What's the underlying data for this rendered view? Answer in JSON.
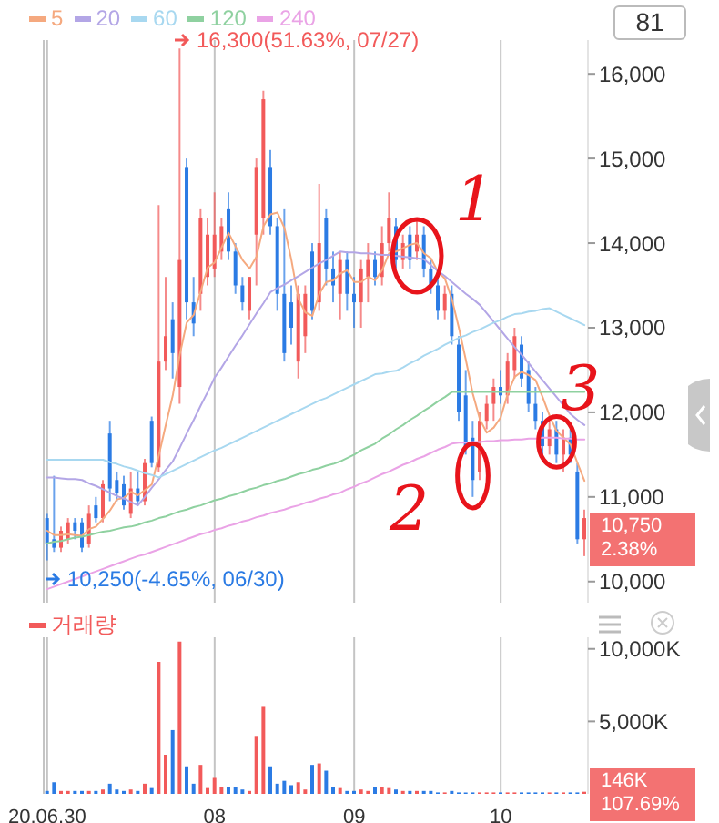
{
  "chart_data": [
    {
      "type": "candlestick",
      "categories": [
        "20.06.30",
        null,
        null,
        null,
        null,
        null,
        null,
        null,
        null,
        null,
        null,
        null,
        null,
        null,
        null,
        null,
        null,
        null,
        null,
        null,
        null,
        null,
        null,
        null,
        "08",
        null,
        null,
        null,
        null,
        null,
        null,
        null,
        null,
        null,
        null,
        null,
        null,
        null,
        null,
        null,
        null,
        null,
        null,
        null,
        "09",
        null,
        null,
        null,
        null,
        null,
        null,
        null,
        null,
        null,
        null,
        null,
        null,
        null,
        null,
        null,
        null,
        null,
        null,
        null,
        null,
        "10",
        null,
        null,
        null,
        null,
        null,
        null,
        null,
        null,
        null,
        null,
        null,
        null
      ],
      "ohlc": [
        [
          10750,
          10800,
          10250,
          10450
        ],
        [
          10500,
          11250,
          10350,
          10400
        ],
        [
          10400,
          10650,
          10350,
          10600
        ],
        [
          10500,
          10750,
          10450,
          10700
        ],
        [
          10700,
          10750,
          10500,
          10600
        ],
        [
          10700,
          10750,
          10350,
          10400
        ],
        [
          10450,
          10900,
          10400,
          10800
        ],
        [
          10900,
          11000,
          10700,
          10750
        ],
        [
          10750,
          11200,
          10700,
          11150
        ],
        [
          11750,
          11900,
          10950,
          11100
        ],
        [
          11200,
          11300,
          10950,
          11050
        ],
        [
          11150,
          11250,
          10850,
          10900
        ],
        [
          10800,
          11300,
          10750,
          11100
        ],
        [
          11100,
          11300,
          10900,
          10950
        ],
        [
          10950,
          11450,
          10900,
          11400
        ],
        [
          11900,
          11950,
          11350,
          11400
        ],
        [
          11350,
          14450,
          11300,
          12600
        ],
        [
          12600,
          13600,
          12500,
          12900
        ],
        [
          13100,
          13300,
          12400,
          12700
        ],
        [
          12300,
          16300,
          12100,
          13800
        ],
        [
          14900,
          15000,
          13100,
          13300
        ],
        [
          13300,
          13600,
          12900,
          13050
        ],
        [
          13400,
          14400,
          13200,
          14300
        ],
        [
          13600,
          14300,
          13500,
          14100
        ],
        [
          13700,
          14600,
          13600,
          14100
        ],
        [
          13900,
          14300,
          13800,
          14200
        ],
        [
          14400,
          14600,
          13800,
          13900
        ],
        [
          13900,
          14000,
          13400,
          13500
        ],
        [
          13500,
          13600,
          13200,
          13300
        ],
        [
          13200,
          13600,
          13100,
          13600
        ],
        [
          14100,
          15000,
          13500,
          14900
        ],
        [
          14300,
          15800,
          14100,
          15700
        ],
        [
          14900,
          15100,
          14100,
          14200
        ],
        [
          14200,
          14300,
          13200,
          13400
        ],
        [
          13400,
          14400,
          12600,
          12700
        ],
        [
          13300,
          13500,
          12800,
          13000
        ],
        [
          12600,
          13500,
          12400,
          13400
        ],
        [
          12900,
          13500,
          12700,
          13400
        ],
        [
          13900,
          14000,
          13100,
          13200
        ],
        [
          13300,
          14700,
          13200,
          14000
        ],
        [
          14300,
          14400,
          13500,
          13700
        ],
        [
          13700,
          13900,
          13300,
          13500
        ],
        [
          13400,
          13900,
          13100,
          13800
        ],
        [
          13800,
          13900,
          13200,
          13400
        ],
        [
          13400,
          13600,
          13000,
          13300
        ],
        [
          13300,
          13800,
          13000,
          13700
        ],
        [
          13600,
          14000,
          13300,
          13800
        ],
        [
          13800,
          13900,
          13500,
          13600
        ],
        [
          13600,
          14200,
          13500,
          14000
        ],
        [
          14000,
          14600,
          13900,
          14300
        ],
        [
          14200,
          14300,
          13700,
          13800
        ],
        [
          13800,
          14100,
          13700,
          14000
        ],
        [
          14100,
          14200,
          13700,
          13800
        ],
        [
          13900,
          14300,
          13800,
          14100
        ],
        [
          14100,
          14200,
          13600,
          13700
        ],
        [
          13700,
          13800,
          13400,
          13500
        ],
        [
          13500,
          13600,
          13100,
          13200
        ],
        [
          13200,
          13500,
          13100,
          13400
        ],
        [
          13400,
          13500,
          12800,
          12900
        ],
        [
          12800,
          12900,
          11900,
          12000
        ],
        [
          12200,
          12500,
          11500,
          11600
        ],
        [
          11700,
          11900,
          11000,
          11200
        ],
        [
          11300,
          12000,
          11200,
          11900
        ],
        [
          11900,
          12200,
          11800,
          12100
        ],
        [
          12100,
          12400,
          11900,
          12300
        ],
        [
          12300,
          12500,
          12100,
          12200
        ],
        [
          12200,
          12700,
          12100,
          12600
        ],
        [
          12500,
          13000,
          12400,
          12900
        ],
        [
          12800,
          12900,
          12300,
          12400
        ],
        [
          12500,
          12600,
          12000,
          12100
        ],
        [
          12100,
          12300,
          11800,
          11900
        ],
        [
          11900,
          12000,
          11500,
          11600
        ],
        [
          11600,
          11900,
          11500,
          11800
        ],
        [
          11800,
          11900,
          11400,
          11500
        ],
        [
          11500,
          11800,
          11300,
          11700
        ],
        [
          11700,
          11800,
          11400,
          11500
        ],
        [
          11300,
          11400,
          10450,
          10500
        ],
        [
          10500,
          10850,
          10300,
          10750
        ]
      ],
      "colors": [
        "#2b7be4",
        "#2b7be4",
        "#f25a5a",
        "#f25a5a",
        "#2b7be4",
        "#2b7be4",
        "#f25a5a",
        "#2b7be4",
        "#f25a5a",
        "#2b7be4",
        "#2b7be4",
        "#2b7be4",
        "#f25a5a",
        "#2b7be4",
        "#f25a5a",
        "#2b7be4",
        "#f25a5a",
        "#f25a5a",
        "#2b7be4",
        "#f25a5a",
        "#2b7be4",
        "#2b7be4",
        "#f25a5a",
        "#f25a5a",
        "#f25a5a",
        "#f25a5a",
        "#2b7be4",
        "#2b7be4",
        "#2b7be4",
        "#f25a5a",
        "#f25a5a",
        "#f25a5a",
        "#2b7be4",
        "#2b7be4",
        "#2b7be4",
        "#2b7be4",
        "#f25a5a",
        "#f25a5a",
        "#2b7be4",
        "#f25a5a",
        "#2b7be4",
        "#2b7be4",
        "#f25a5a",
        "#2b7be4",
        "#2b7be4",
        "#f25a5a",
        "#f25a5a",
        "#2b7be4",
        "#f25a5a",
        "#f25a5a",
        "#2b7be4",
        "#f25a5a",
        "#2b7be4",
        "#f25a5a",
        "#2b7be4",
        "#2b7be4",
        "#2b7be4",
        "#f25a5a",
        "#2b7be4",
        "#2b7be4",
        "#2b7be4",
        "#2b7be4",
        "#f25a5a",
        "#f25a5a",
        "#f25a5a",
        "#2b7be4",
        "#f25a5a",
        "#f25a5a",
        "#2b7be4",
        "#2b7be4",
        "#2b7be4",
        "#2b7be4",
        "#f25a5a",
        "#2b7be4",
        "#f25a5a",
        "#2b7be4",
        "#2b7be4",
        "#f25a5a"
      ],
      "series": [
        {
          "type": "line",
          "name": "5",
          "color": "#f5a97f",
          "values": [
            10600,
            10550,
            10550,
            10560,
            10550,
            10540,
            10620,
            10650,
            10740,
            10840,
            10970,
            10990,
            11060,
            11020,
            11080,
            11150,
            11490,
            11850,
            12200,
            12680,
            13060,
            13150,
            13430,
            13710,
            13770,
            13950,
            14120,
            13960,
            13800,
            13700,
            13840,
            14200,
            14340,
            14360,
            14180,
            13800,
            13340,
            13180,
            13140,
            13400,
            13540,
            13560,
            13640,
            13680,
            13540,
            13540,
            13600,
            13560,
            13680,
            13880,
            13900,
            13940,
            13980,
            14000,
            13880,
            13820,
            13660,
            13580,
            13340,
            13000,
            12620,
            12220,
            11920,
            11760,
            11820,
            11940,
            12220,
            12420,
            12480,
            12440,
            12380,
            12180,
            11960,
            11780,
            11700,
            11620,
            11400,
            11190
          ]
        },
        {
          "type": "line",
          "name": "20",
          "color": "#b3a6e6",
          "values": [
            11230,
            11230,
            11220,
            11210,
            11210,
            11200,
            11160,
            11130,
            11090,
            11050,
            11010,
            10980,
            10940,
            10900,
            11000,
            11110,
            11210,
            11320,
            11420,
            11580,
            11750,
            11910,
            12080,
            12240,
            12410,
            12530,
            12660,
            12790,
            12910,
            13040,
            13170,
            13290,
            13420,
            13470,
            13510,
            13560,
            13610,
            13660,
            13710,
            13760,
            13800,
            13850,
            13900,
            13890,
            13890,
            13880,
            13880,
            13870,
            13860,
            13860,
            13850,
            13840,
            13830,
            13820,
            13810,
            13740,
            13670,
            13610,
            13540,
            13470,
            13400,
            13340,
            13270,
            13170,
            13070,
            12970,
            12870,
            12770,
            12680,
            12580,
            12480,
            12380,
            12280,
            12180,
            12080,
            11980,
            11910,
            11850
          ]
        },
        {
          "type": "line",
          "name": "60",
          "color": "#a8d8f0",
          "values": [
            11440,
            11440,
            11440,
            11440,
            11440,
            11440,
            11440,
            11440,
            11440,
            11410,
            11390,
            11360,
            11340,
            11310,
            11280,
            11260,
            11230,
            11270,
            11310,
            11350,
            11390,
            11430,
            11470,
            11510,
            11550,
            11580,
            11620,
            11660,
            11700,
            11740,
            11780,
            11820,
            11860,
            11900,
            11940,
            11980,
            12020,
            12060,
            12100,
            12140,
            12170,
            12210,
            12250,
            12290,
            12330,
            12370,
            12410,
            12450,
            12460,
            12480,
            12490,
            12530,
            12580,
            12620,
            12670,
            12710,
            12750,
            12800,
            12840,
            12880,
            12910,
            12950,
            12980,
            13020,
            13060,
            13090,
            13130,
            13160,
            13170,
            13190,
            13200,
            13220,
            13230,
            13190,
            13150,
            13110,
            13070,
            13030
          ]
        },
        {
          "type": "line",
          "name": "120",
          "color": "#8fd1a0",
          "values": [
            10450,
            10470,
            10480,
            10500,
            10520,
            10530,
            10550,
            10570,
            10590,
            10600,
            10620,
            10640,
            10650,
            10670,
            10700,
            10720,
            10750,
            10770,
            10800,
            10830,
            10850,
            10880,
            10900,
            10930,
            10960,
            10980,
            11010,
            11030,
            11060,
            11090,
            11110,
            11140,
            11160,
            11190,
            11210,
            11240,
            11270,
            11290,
            11320,
            11340,
            11370,
            11390,
            11420,
            11460,
            11500,
            11550,
            11590,
            11630,
            11690,
            11740,
            11800,
            11850,
            11910,
            11960,
            12020,
            12070,
            12130,
            12180,
            12240,
            12240,
            12240,
            12240,
            12240,
            12240,
            12240,
            12240,
            12240,
            12240,
            12240,
            12240,
            12240,
            12240,
            12240,
            12240,
            12240,
            12240,
            12240,
            12240
          ]
        },
        {
          "type": "line",
          "name": "240",
          "color": "#eaa3e6",
          "values": [
            9910,
            9940,
            9970,
            10000,
            10030,
            10060,
            10090,
            10120,
            10150,
            10180,
            10210,
            10240,
            10270,
            10300,
            10320,
            10350,
            10380,
            10410,
            10440,
            10470,
            10500,
            10530,
            10560,
            10580,
            10610,
            10630,
            10660,
            10680,
            10710,
            10730,
            10760,
            10780,
            10810,
            10830,
            10850,
            10880,
            10900,
            10930,
            10950,
            10980,
            11000,
            11030,
            11050,
            11090,
            11120,
            11160,
            11190,
            11230,
            11270,
            11300,
            11340,
            11380,
            11410,
            11450,
            11480,
            11520,
            11560,
            11590,
            11630,
            11640,
            11640,
            11650,
            11650,
            11660,
            11660,
            11670,
            11670,
            11680,
            11680,
            11690,
            11690,
            11700,
            11700,
            11700,
            11690,
            11690,
            11680,
            11680
          ]
        }
      ],
      "ylim": [
        9750,
        16400
      ],
      "yticks": [
        {
          "value": 10000,
          "label": "10,000"
        },
        {
          "value": 11000,
          "label": "11,000"
        },
        {
          "value": 12000,
          "label": "12,000"
        },
        {
          "value": 13000,
          "label": "13,000"
        },
        {
          "value": 14000,
          "label": "14,000"
        },
        {
          "value": 15000,
          "label": "15,000"
        },
        {
          "value": 16000,
          "label": "16,000"
        }
      ],
      "grid": "x",
      "legend": "top left",
      "tick_labels": "y",
      "annotations": [
        "81",
        "1",
        "2",
        "3",
        "16,300(51.63%, 07/27)",
        {
          "text": "10,250(-4.65%, 06/30)",
          "x": "20.06.30",
          "y": 10250
        },
        "10,750",
        "2.38%"
      ]
    },
    {
      "type": "bar",
      "categories": [
        "20.06.30",
        null,
        null,
        null,
        null,
        null,
        null,
        null,
        null,
        null,
        null,
        null,
        null,
        null,
        null,
        null,
        null,
        null,
        null,
        null,
        null,
        null,
        null,
        null,
        "08",
        null,
        null,
        null,
        null,
        null,
        null,
        null,
        null,
        null,
        null,
        null,
        null,
        null,
        null,
        null,
        null,
        null,
        null,
        null,
        "09",
        null,
        null,
        null,
        null,
        null,
        null,
        null,
        null,
        null,
        null,
        null,
        null,
        null,
        null,
        null,
        null,
        null,
        null,
        null,
        null,
        "10",
        null,
        null,
        null,
        null,
        null,
        null,
        null,
        null,
        null,
        null,
        null,
        null
      ],
      "series": [
        {
          "name": "거래량",
          "color": "#f25a5a",
          "colors": [
            "#2b7be4",
            "#2b7be4",
            "#f25a5a",
            "#f25a5a",
            "#2b7be4",
            "#2b7be4",
            "#f25a5a",
            "#2b7be4",
            "#f25a5a",
            "#2b7be4",
            "#2b7be4",
            "#2b7be4",
            "#f25a5a",
            "#2b7be4",
            "#f25a5a",
            "#2b7be4",
            "#f25a5a",
            "#f25a5a",
            "#2b7be4",
            "#f25a5a",
            "#2b7be4",
            "#2b7be4",
            "#f25a5a",
            "#f25a5a",
            "#f25a5a",
            "#f25a5a",
            "#2b7be4",
            "#2b7be4",
            "#2b7be4",
            "#f25a5a",
            "#f25a5a",
            "#f25a5a",
            "#2b7be4",
            "#2b7be4",
            "#2b7be4",
            "#2b7be4",
            "#f25a5a",
            "#f25a5a",
            "#2b7be4",
            "#f25a5a",
            "#2b7be4",
            "#2b7be4",
            "#f25a5a",
            "#2b7be4",
            "#2b7be4",
            "#f25a5a",
            "#f25a5a",
            "#2b7be4",
            "#f25a5a",
            "#f25a5a",
            "#2b7be4",
            "#f25a5a",
            "#2b7be4",
            "#f25a5a",
            "#2b7be4",
            "#2b7be4",
            "#2b7be4",
            "#f25a5a",
            "#2b7be4",
            "#2b7be4",
            "#2b7be4",
            "#2b7be4",
            "#f25a5a",
            "#f25a5a",
            "#f25a5a",
            "#2b7be4",
            "#f25a5a",
            "#f25a5a",
            "#2b7be4",
            "#2b7be4",
            "#2b7be4",
            "#2b7be4",
            "#f25a5a",
            "#2b7be4",
            "#f25a5a",
            "#2b7be4",
            "#2b7be4",
            "#f25a5a"
          ],
          "values": [
            200,
            800,
            200,
            200,
            200,
            200,
            200,
            200,
            300,
            700,
            300,
            200,
            300,
            200,
            700,
            400,
            9100,
            2700,
            4400,
            10500,
            1900,
            700,
            2000,
            400,
            1100,
            500,
            500,
            500,
            300,
            200,
            4000,
            6000,
            1900,
            700,
            900,
            600,
            800,
            300,
            2000,
            2100,
            1600,
            500,
            400,
            200,
            200,
            300,
            200,
            500,
            500,
            400,
            300,
            200,
            200,
            200,
            200,
            200,
            100,
            100,
            200,
            100,
            100,
            100,
            100,
            100,
            100,
            100,
            100,
            100,
            100,
            100,
            100,
            100,
            100,
            100,
            100,
            100,
            100,
            146
          ]
        }
      ],
      "ylim": [
        0,
        10800
      ],
      "yticks": [
        {
          "value": 5000,
          "label": "5,000K"
        },
        {
          "value": 10000,
          "label": "10,000K"
        }
      ],
      "grid": "x",
      "legend": "top left",
      "annotations": [
        "146K",
        "107.69%"
      ]
    }
  ]
}
